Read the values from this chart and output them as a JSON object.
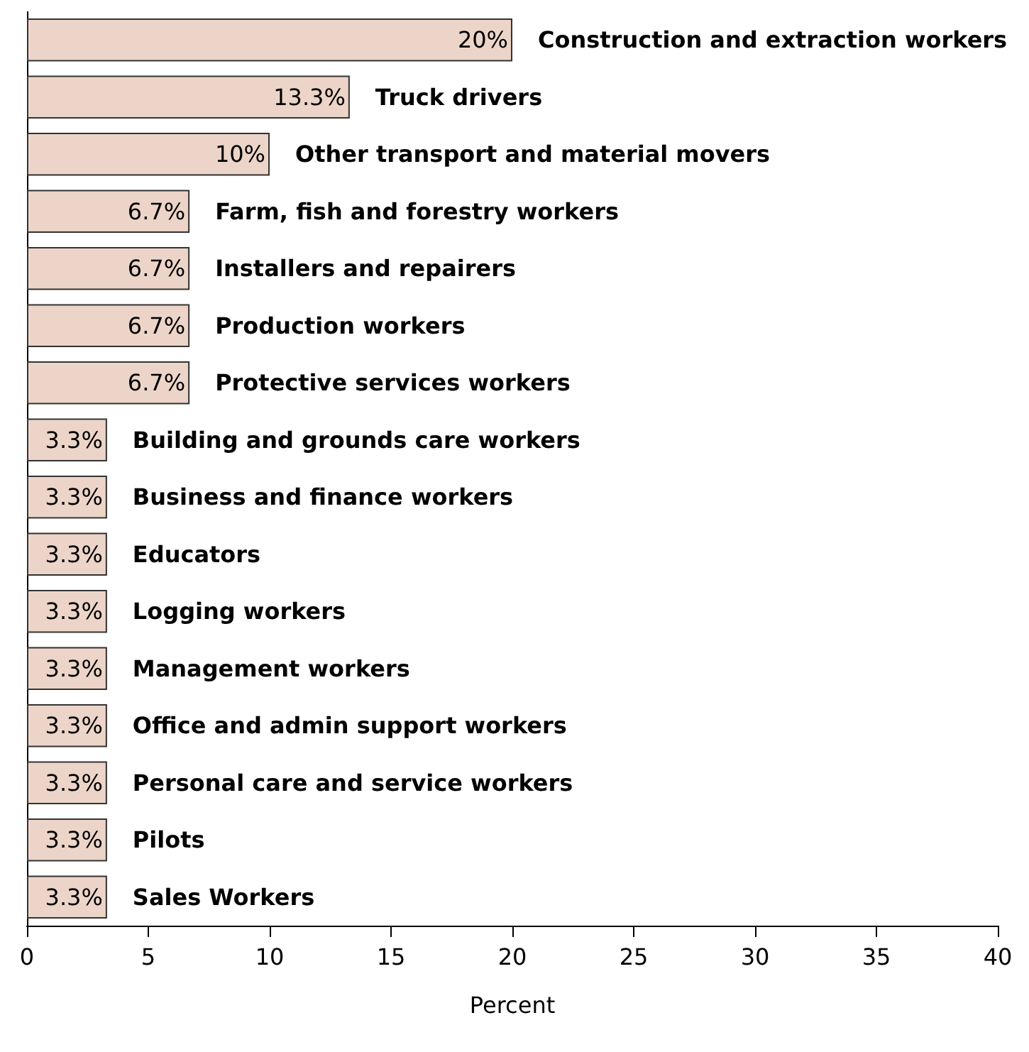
{
  "chart_data": {
    "type": "bar",
    "orientation": "horizontal",
    "xlabel": "Percent",
    "categories": [
      "Construction and extraction workers",
      "Truck drivers",
      "Other transport and material movers",
      "Farm, fish and forestry workers",
      "Installers and repairers",
      "Production workers",
      "Protective services workers",
      "Building and grounds care workers",
      "Business and finance workers",
      "Educators",
      "Logging workers",
      "Management workers",
      "Office and admin support workers",
      "Personal care and service workers",
      "Pilots",
      "Sales Workers"
    ],
    "values": [
      20,
      13.3,
      10,
      6.7,
      6.7,
      6.7,
      6.7,
      3.3,
      3.3,
      3.3,
      3.3,
      3.3,
      3.3,
      3.3,
      3.3,
      3.3
    ],
    "value_labels": [
      "20%",
      "13.3%",
      "10%",
      "6.7%",
      "6.7%",
      "6.7%",
      "6.7%",
      "3.3%",
      "3.3%",
      "3.3%",
      "3.3%",
      "3.3%",
      "3.3%",
      "3.3%",
      "3.3%",
      "3.3%"
    ],
    "color": "#ecd5c8",
    "xlim": [
      0,
      40
    ],
    "xticks": [
      0,
      5,
      10,
      15,
      20,
      25,
      30,
      35,
      40
    ],
    "tick_labels": "x",
    "grid": false
  }
}
